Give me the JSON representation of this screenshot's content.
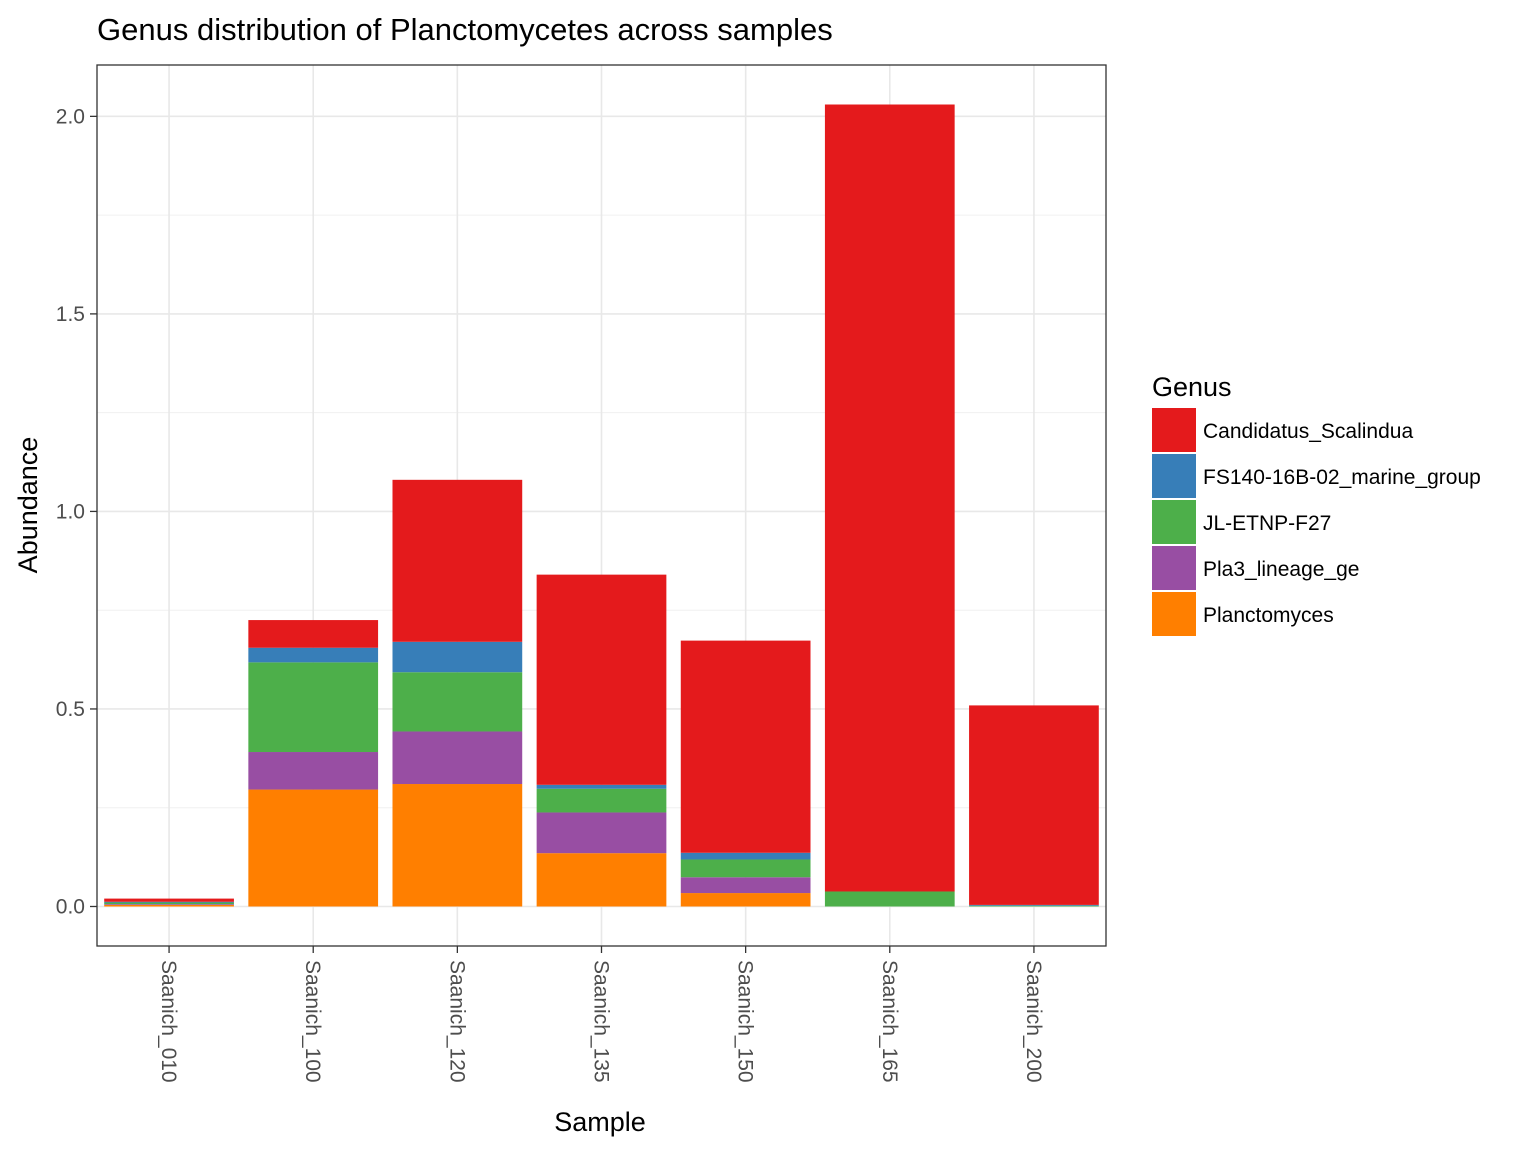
{
  "chart_data": {
    "type": "bar",
    "stacked": true,
    "title": "Genus distribution of Planctomycetes across samples",
    "xlabel": "Sample",
    "ylabel": "Abundance",
    "ylim": [
      -0.1,
      2.13
    ],
    "yticks": [
      0.0,
      0.5,
      1.0,
      1.5,
      2.0
    ],
    "ytick_labels": [
      "0.0",
      "0.5",
      "1.0",
      "1.5",
      "2.0"
    ],
    "grid": true,
    "legend_position": "right",
    "legend_title": "Genus",
    "categories": [
      "Saanich_010",
      "Saanich_100",
      "Saanich_120",
      "Saanich_135",
      "Saanich_150",
      "Saanich_165",
      "Saanich_200"
    ],
    "series": [
      {
        "name": "Planctomyces",
        "color": "#FF7F00",
        "values": [
          0.004,
          0.296,
          0.31,
          0.135,
          0.034,
          0.0,
          0.0
        ]
      },
      {
        "name": "Pla3_lineage_ge",
        "color": "#984EA3",
        "values": [
          0.002,
          0.095,
          0.133,
          0.103,
          0.04,
          0.0,
          0.0
        ]
      },
      {
        "name": "JL-ETNP-F27",
        "color": "#4DAF4A",
        "values": [
          0.004,
          0.227,
          0.15,
          0.06,
          0.045,
          0.038,
          0.002
        ]
      },
      {
        "name": "FS140-16B-02_marine_group",
        "color": "#377EB8",
        "values": [
          0.002,
          0.037,
          0.077,
          0.01,
          0.017,
          0.0,
          0.002
        ]
      },
      {
        "name": "Candidatus_Scalindua",
        "color": "#E41A1C",
        "values": [
          0.008,
          0.07,
          0.41,
          0.532,
          0.537,
          1.992,
          0.505
        ]
      }
    ]
  }
}
